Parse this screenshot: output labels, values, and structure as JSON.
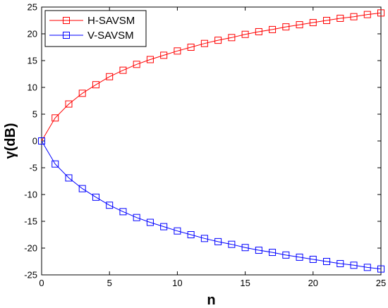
{
  "chart_data": {
    "type": "line",
    "xlabel": "n",
    "ylabel": "γ(dB)",
    "xlim": [
      0,
      25
    ],
    "ylim": [
      -25,
      25
    ],
    "xticks": [
      0,
      5,
      10,
      15,
      20,
      25
    ],
    "yticks": [
      -25,
      -20,
      -15,
      -10,
      -5,
      0,
      5,
      10,
      15,
      20,
      25
    ],
    "grid": false,
    "legend_position": "top-left",
    "x": [
      0,
      1,
      2,
      3,
      4,
      5,
      6,
      7,
      8,
      9,
      10,
      11,
      12,
      13,
      14,
      15,
      16,
      17,
      18,
      19,
      20,
      21,
      22,
      23,
      24,
      25
    ],
    "series": [
      {
        "name": "H-SAVSM",
        "color": "#ff0000",
        "marker": "square",
        "values": [
          0,
          4.3,
          6.9,
          8.9,
          10.5,
          12.0,
          13.2,
          14.3,
          15.2,
          16.0,
          16.8,
          17.5,
          18.2,
          18.8,
          19.3,
          19.9,
          20.4,
          20.8,
          21.3,
          21.7,
          22.1,
          22.5,
          22.9,
          23.2,
          23.6,
          23.9
        ]
      },
      {
        "name": "V-SAVSM",
        "color": "#0000ff",
        "marker": "square",
        "values": [
          0,
          -4.3,
          -6.9,
          -8.9,
          -10.5,
          -12.0,
          -13.2,
          -14.3,
          -15.2,
          -16.0,
          -16.8,
          -17.5,
          -18.2,
          -18.8,
          -19.3,
          -19.9,
          -20.4,
          -20.8,
          -21.3,
          -21.7,
          -22.1,
          -22.5,
          -22.9,
          -23.2,
          -23.6,
          -23.9
        ]
      }
    ]
  }
}
